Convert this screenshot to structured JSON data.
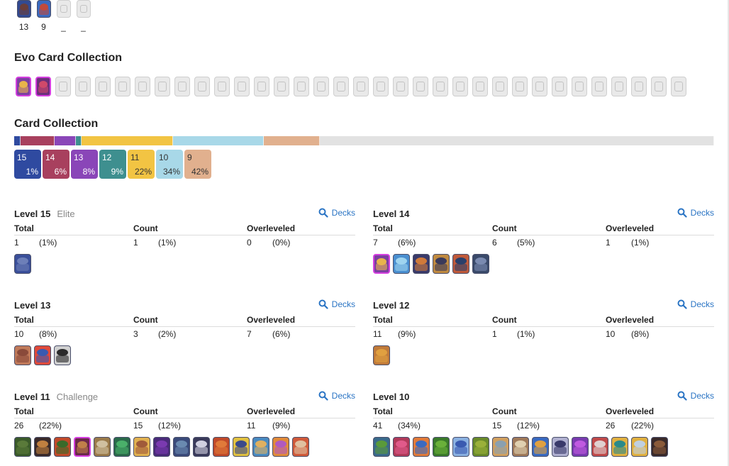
{
  "top_cards": [
    {
      "count": "13",
      "state": "owned",
      "colors": [
        "#6a3e3a",
        "#324a92"
      ]
    },
    {
      "count": "9",
      "state": "owned",
      "colors": [
        "#c04a3c",
        "#3a6ac0"
      ]
    },
    {
      "count": "_",
      "state": "locked",
      "colors": [
        "#e9e9e9",
        "#e9e9e9"
      ]
    },
    {
      "count": "_",
      "state": "locked",
      "colors": [
        "#e9e9e9",
        "#e9e9e9"
      ]
    }
  ],
  "evo_collection": {
    "title": "Evo Card Collection",
    "cards": [
      {
        "state": "evo",
        "colors": [
          "#e8b44b",
          "#7b3fa0"
        ]
      },
      {
        "state": "evo",
        "colors": [
          "#d0496a",
          "#6b2f7a"
        ]
      },
      {
        "state": "locked"
      },
      {
        "state": "locked"
      },
      {
        "state": "locked"
      },
      {
        "state": "locked"
      },
      {
        "state": "locked"
      },
      {
        "state": "locked"
      },
      {
        "state": "locked"
      },
      {
        "state": "locked"
      },
      {
        "state": "locked"
      },
      {
        "state": "locked"
      },
      {
        "state": "locked"
      },
      {
        "state": "locked"
      },
      {
        "state": "locked"
      },
      {
        "state": "locked"
      },
      {
        "state": "locked"
      },
      {
        "state": "locked"
      },
      {
        "state": "locked"
      },
      {
        "state": "locked"
      },
      {
        "state": "locked"
      },
      {
        "state": "locked"
      },
      {
        "state": "locked"
      },
      {
        "state": "locked"
      },
      {
        "state": "locked"
      },
      {
        "state": "locked"
      },
      {
        "state": "locked"
      },
      {
        "state": "locked"
      },
      {
        "state": "locked"
      },
      {
        "state": "locked"
      },
      {
        "state": "locked"
      },
      {
        "state": "locked"
      },
      {
        "state": "locked"
      },
      {
        "state": "locked"
      }
    ]
  },
  "card_collection": {
    "title": "Card Collection",
    "bar_segments": [
      {
        "level": "15",
        "fraction": 0.009,
        "color": "#2f4aa0"
      },
      {
        "level": "14",
        "fraction": 0.049,
        "color": "#a8405e"
      },
      {
        "level": "13",
        "fraction": 0.03,
        "color": "#8a46b8"
      },
      {
        "level": "12",
        "fraction": 0.008,
        "color": "#3e8f8f"
      },
      {
        "level": "11",
        "fraction": 0.131,
        "color": "#f2c443"
      },
      {
        "level": "10",
        "fraction": 0.13,
        "color": "#a8d8e8"
      },
      {
        "level": "9",
        "fraction": 0.08,
        "color": "#e1b08e"
      },
      {
        "level": "remaining",
        "fraction": 0.563,
        "color": "#e2e2e2"
      }
    ],
    "tiles": [
      {
        "level": "15",
        "percent": "1%",
        "color": "#2f4aa0",
        "light": false
      },
      {
        "level": "14",
        "percent": "6%",
        "color": "#a8405e",
        "light": false
      },
      {
        "level": "13",
        "percent": "8%",
        "color": "#8a46b8",
        "light": false
      },
      {
        "level": "12",
        "percent": "9%",
        "color": "#3e8f8f",
        "light": false
      },
      {
        "level": "11",
        "percent": "22%",
        "color": "#f2c443",
        "light": true
      },
      {
        "level": "10",
        "percent": "34%",
        "color": "#a8d8e8",
        "light": true
      },
      {
        "level": "9",
        "percent": "42%",
        "color": "#e1b08e",
        "light": true
      }
    ]
  },
  "labels": {
    "total": "Total",
    "count": "Count",
    "overleveled": "Overleveled",
    "decks": "Decks"
  },
  "levels": [
    {
      "title": "Level 15",
      "subtitle": "Elite",
      "total": "1",
      "total_pct": "(1%)",
      "count": "1",
      "count_pct": "(1%)",
      "over": "0",
      "over_pct": "(0%)",
      "cards": [
        {
          "state": "owned",
          "colors": [
            "#6d7fb8",
            "#3a4f9a"
          ]
        }
      ]
    },
    {
      "title": "Level 14",
      "subtitle": "",
      "total": "7",
      "total_pct": "(6%)",
      "count": "6",
      "count_pct": "(5%)",
      "over": "1",
      "over_pct": "(1%)",
      "cards": [
        {
          "state": "evo",
          "colors": [
            "#e8b44b",
            "#7b3fa0"
          ]
        },
        {
          "state": "owned",
          "colors": [
            "#9fd4ef",
            "#4a8fd0"
          ]
        },
        {
          "state": "owned",
          "colors": [
            "#d07a3a",
            "#3a3a6a"
          ]
        },
        {
          "state": "owned",
          "colors": [
            "#3a3a5a",
            "#c08a40"
          ]
        },
        {
          "state": "owned",
          "colors": [
            "#2a3f6a",
            "#c05a3a"
          ]
        },
        {
          "state": "owned",
          "colors": [
            "#7a8ab0",
            "#3a4a6a"
          ]
        }
      ]
    },
    {
      "title": "Level 13",
      "subtitle": "",
      "total": "10",
      "total_pct": "(8%)",
      "count": "3",
      "count_pct": "(2%)",
      "over": "7",
      "over_pct": "(6%)",
      "cards": [
        {
          "state": "owned",
          "colors": [
            "#8a4a3a",
            "#c07a5a"
          ]
        },
        {
          "state": "owned",
          "colors": [
            "#3a5ab0",
            "#e04a3a"
          ]
        },
        {
          "state": "owned",
          "colors": [
            "#2a2a2a",
            "#d0d0d0"
          ]
        }
      ]
    },
    {
      "title": "Level 12",
      "subtitle": "",
      "total": "11",
      "total_pct": "(9%)",
      "count": "1",
      "count_pct": "(1%)",
      "over": "10",
      "over_pct": "(8%)",
      "cards": [
        {
          "state": "owned",
          "colors": [
            "#e0a040",
            "#c07a3a"
          ]
        }
      ]
    },
    {
      "title": "Level 11",
      "subtitle": "Challenge",
      "total": "26",
      "total_pct": "(22%)",
      "count": "15",
      "count_pct": "(12%)",
      "over": "11",
      "over_pct": "(9%)",
      "cards": [
        {
          "state": "owned",
          "colors": [
            "#5a7a3a",
            "#3a5a2a"
          ]
        },
        {
          "state": "owned",
          "colors": [
            "#c08040",
            "#3a2a2a"
          ]
        },
        {
          "state": "owned",
          "colors": [
            "#3a6a2a",
            "#c04a2a"
          ]
        },
        {
          "state": "evo",
          "colors": [
            "#c0804a",
            "#6a2a4a"
          ]
        },
        {
          "state": "owned",
          "colors": [
            "#d0c0a0",
            "#9a7a4a"
          ]
        },
        {
          "state": "owned",
          "colors": [
            "#4ab06a",
            "#2a6a4a"
          ]
        },
        {
          "state": "owned",
          "colors": [
            "#a05a3a",
            "#e0b050"
          ]
        },
        {
          "state": "owned",
          "colors": [
            "#7a3ab0",
            "#4a2a7a"
          ]
        },
        {
          "state": "owned",
          "colors": [
            "#6a8ab0",
            "#3a4a7a"
          ]
        },
        {
          "state": "owned",
          "colors": [
            "#d0d0e0",
            "#3a3a5a"
          ]
        },
        {
          "state": "owned",
          "colors": [
            "#e07a3a",
            "#c04a2a"
          ]
        },
        {
          "state": "owned",
          "colors": [
            "#3a4a8a",
            "#e0c040"
          ]
        },
        {
          "state": "owned",
          "colors": [
            "#e0b060",
            "#4a8ac0"
          ]
        },
        {
          "state": "owned",
          "colors": [
            "#b05ac0",
            "#e08a3a"
          ]
        },
        {
          "state": "owned",
          "colors": [
            "#e0c0a0",
            "#d05a3a"
          ]
        }
      ]
    },
    {
      "title": "Level 10",
      "subtitle": "",
      "total": "41",
      "total_pct": "(34%)",
      "count": "15",
      "count_pct": "(12%)",
      "over": "26",
      "over_pct": "(22%)",
      "cards": [
        {
          "state": "owned",
          "colors": [
            "#5a9a3a",
            "#3a6a8a"
          ]
        },
        {
          "state": "owned",
          "colors": [
            "#e05a8a",
            "#b03a5a"
          ]
        },
        {
          "state": "owned",
          "colors": [
            "#3a6ac0",
            "#e07a3a"
          ]
        },
        {
          "state": "owned",
          "colors": [
            "#6ab03a",
            "#3a7a2a"
          ]
        },
        {
          "state": "owned",
          "colors": [
            "#3a5ab0",
            "#8ab0e0"
          ]
        },
        {
          "state": "owned",
          "colors": [
            "#9ab03a",
            "#6a8a2a"
          ]
        },
        {
          "state": "owned",
          "colors": [
            "#8aa0b0",
            "#d0a060"
          ]
        },
        {
          "state": "owned",
          "colors": [
            "#e0d0b0",
            "#a07a5a"
          ]
        },
        {
          "state": "owned",
          "colors": [
            "#e0a040",
            "#3a6ac0"
          ]
        },
        {
          "state": "owned",
          "colors": [
            "#3a3a6a",
            "#b0b0d0"
          ]
        },
        {
          "state": "owned",
          "colors": [
            "#c05ae0",
            "#7a3ab0"
          ]
        },
        {
          "state": "owned",
          "colors": [
            "#e0d0d0",
            "#c04a4a"
          ]
        },
        {
          "state": "owned",
          "colors": [
            "#2a8a8a",
            "#e0b040"
          ]
        },
        {
          "state": "owned",
          "colors": [
            "#c0d0e0",
            "#e0b040"
          ]
        },
        {
          "state": "owned",
          "colors": [
            "#8a5a3a",
            "#3a2a2a"
          ]
        }
      ]
    }
  ]
}
